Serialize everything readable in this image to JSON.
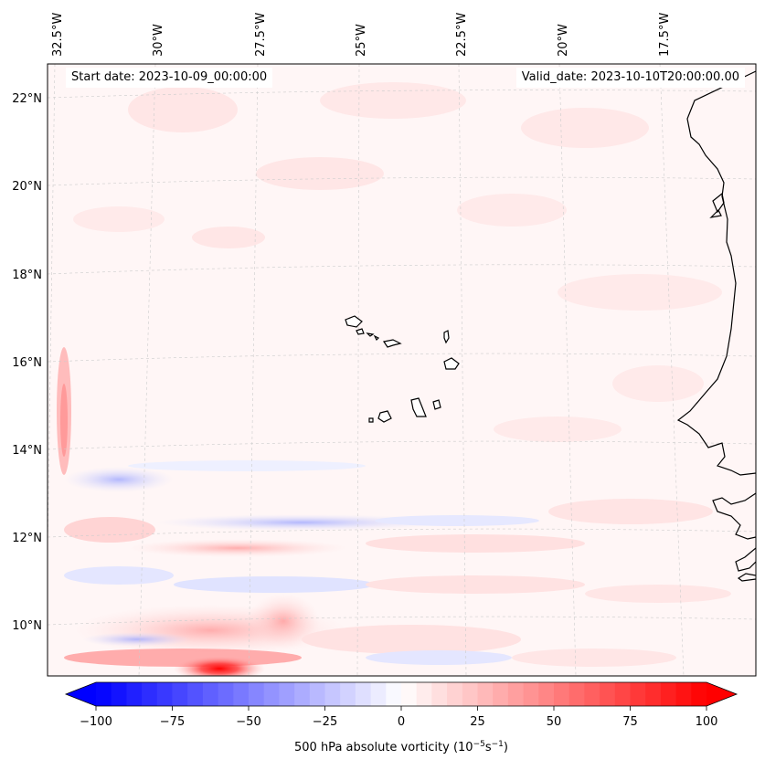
{
  "map": {
    "lon_labels": [
      "32.5°W",
      "30°W",
      "27.5°W",
      "25°W",
      "22.5°W",
      "20°W",
      "17.5°W"
    ],
    "lat_labels": [
      "22°N",
      "20°N",
      "18°N",
      "16°N",
      "14°N",
      "12°N",
      "10°N"
    ],
    "start_date": "Start date: 2023-10-09_00:00:00",
    "valid_date": "Valid_date: 2023-10-10T20:00:00.00"
  },
  "colorbar": {
    "ticks": [
      "−100",
      "−75",
      "−50",
      "−25",
      "0",
      "25",
      "50",
      "75",
      "100"
    ],
    "label_main": "500 hPa absolute vorticity (10",
    "label_exp1": "−5",
    "label_mid": "s",
    "label_exp2": "−1",
    "label_end": ")",
    "min": -100,
    "max": 100,
    "colors": {
      "negative": "#0000ff",
      "zero": "#ffffff",
      "positive": "#ff0000"
    }
  }
}
